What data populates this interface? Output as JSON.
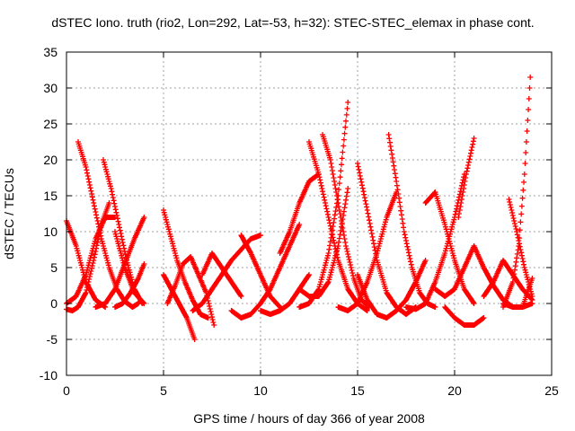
{
  "chart_data": {
    "type": "scatter",
    "title": "dSTEC Iono. truth (rio2, Lon=292, Lat=-53, h=32): STEC-STEC_elemax in phase cont.",
    "xlabel": "GPS time / hours of day 366 of year 2008",
    "ylabel": "dSTEC  / TECUs",
    "xlim": [
      0,
      25
    ],
    "ylim": [
      -10,
      35
    ],
    "x_ticks": [
      "0",
      "5",
      "10",
      "15",
      "20",
      "25"
    ],
    "y_ticks": [
      "-10",
      "-5",
      "0",
      "5",
      "10",
      "15",
      "20",
      "25",
      "30",
      "35"
    ],
    "grid": true,
    "marker": "plus",
    "color": "#ff0000",
    "arcs": [
      {
        "x": [
          0.0,
          0.5,
          1.0,
          1.5,
          2.0
        ],
        "y": [
          11.5,
          8.0,
          3.0,
          0.5,
          -0.5
        ]
      },
      {
        "x": [
          0.0,
          0.3,
          0.6,
          1.0,
          1.4,
          1.8,
          2.2
        ],
        "y": [
          -0.8,
          -1.0,
          -0.5,
          1.5,
          6.0,
          11.0,
          14.0
        ]
      },
      {
        "x": [
          0.0,
          0.5,
          1.0,
          1.5,
          2.0,
          2.5
        ],
        "y": [
          0.0,
          1.0,
          4.0,
          9.0,
          12.0,
          12.0
        ]
      },
      {
        "x": [
          0.6,
          1.0,
          1.4,
          1.8,
          2.2,
          2.6,
          3.0,
          3.4,
          3.7
        ],
        "y": [
          22.5,
          19.0,
          14.0,
          9.0,
          5.0,
          2.0,
          0.3,
          -0.5,
          0.0
        ]
      },
      {
        "x": [
          1.5,
          2.0,
          2.5,
          3.0,
          3.5,
          4.0
        ],
        "y": [
          -0.5,
          0.0,
          2.0,
          5.5,
          9.0,
          12.0
        ]
      },
      {
        "x": [
          1.9,
          2.3,
          2.7,
          3.1,
          3.5,
          3.9
        ],
        "y": [
          20.0,
          16.0,
          11.0,
          6.0,
          2.0,
          0.0
        ]
      },
      {
        "x": [
          2.5,
          3.0,
          3.5,
          4.0
        ],
        "y": [
          10.0,
          5.0,
          1.5,
          0.0
        ]
      },
      {
        "x": [
          2.5,
          2.9,
          3.3,
          3.7,
          4.0
        ],
        "y": [
          -0.5,
          0.0,
          1.5,
          3.5,
          5.5
        ]
      },
      {
        "x": [
          5.0,
          5.3,
          5.7,
          6.1,
          6.5,
          6.9,
          7.3
        ],
        "y": [
          13.0,
          10.0,
          6.0,
          3.0,
          0.5,
          -1.5,
          -2.0
        ]
      },
      {
        "x": [
          5.0,
          5.4,
          5.8,
          6.2,
          6.6
        ],
        "y": [
          4.0,
          2.0,
          0.0,
          -2.0,
          -5.0
        ]
      },
      {
        "x": [
          5.2,
          5.6,
          6.0,
          6.4,
          6.8,
          7.2,
          7.6
        ],
        "y": [
          0.0,
          2.5,
          5.5,
          6.5,
          4.0,
          1.5,
          -3.0
        ]
      },
      {
        "x": [
          6.5,
          7.0,
          7.5,
          8.0,
          8.5,
          9.0,
          9.5,
          10.0
        ],
        "y": [
          -1.0,
          0.0,
          2.0,
          4.0,
          6.0,
          7.5,
          9.0,
          9.5
        ]
      },
      {
        "x": [
          7.0,
          7.5,
          8.0,
          8.5,
          9.0
        ],
        "y": [
          4.0,
          7.0,
          5.0,
          3.0,
          1.0
        ]
      },
      {
        "x": [
          8.5,
          9.0,
          9.5,
          10.0,
          10.5,
          11.0,
          11.5,
          12.0
        ],
        "y": [
          -1.0,
          -2.0,
          -1.5,
          0.0,
          2.0,
          5.0,
          8.0,
          11.0
        ]
      },
      {
        "x": [
          9.0,
          9.5,
          10.0,
          10.5,
          11.0
        ],
        "y": [
          9.5,
          7.0,
          4.0,
          1.0,
          -0.5
        ]
      },
      {
        "x": [
          10.0,
          10.5,
          11.0,
          11.5,
          12.0,
          12.5
        ],
        "y": [
          -1.0,
          -1.5,
          -1.0,
          0.0,
          2.0,
          4.0
        ]
      },
      {
        "x": [
          11.0,
          11.5,
          12.0,
          12.5,
          13.0
        ],
        "y": [
          7.0,
          10.0,
          14.0,
          17.0,
          18.0
        ]
      },
      {
        "x": [
          12.5,
          13.0,
          13.5,
          14.0,
          14.5,
          15.0,
          15.5
        ],
        "y": [
          22.5,
          18.0,
          12.0,
          6.0,
          2.0,
          0.0,
          -1.0
        ]
      },
      {
        "x": [
          12.0,
          12.5,
          13.0,
          13.5,
          14.0,
          14.5
        ],
        "y": [
          -0.5,
          0.0,
          2.0,
          7.0,
          15.0,
          28.0
        ]
      },
      {
        "x": [
          13.2,
          13.6,
          14.0,
          14.4,
          14.8,
          15.2,
          15.6
        ],
        "y": [
          23.5,
          20.0,
          14.0,
          8.0,
          3.5,
          0.5,
          -0.5
        ]
      },
      {
        "x": [
          12.0,
          12.5,
          13.0,
          13.5,
          14.0,
          14.5
        ],
        "y": [
          2.0,
          1.0,
          1.0,
          3.0,
          8.0,
          16.0
        ]
      },
      {
        "x": [
          14.0,
          14.5,
          15.0,
          15.5,
          16.0,
          16.5,
          17.0
        ],
        "y": [
          -0.5,
          -1.0,
          0.0,
          3.0,
          7.0,
          12.0,
          15.5
        ]
      },
      {
        "x": [
          15.0,
          15.5,
          16.0,
          16.5,
          17.0,
          17.5,
          18.0
        ],
        "y": [
          19.5,
          13.0,
          6.0,
          1.5,
          -0.5,
          -1.5,
          -0.5
        ]
      },
      {
        "x": [
          15.0,
          15.5,
          16.0,
          16.5,
          17.0,
          17.5,
          18.0,
          18.5
        ],
        "y": [
          4.0,
          0.5,
          -1.5,
          -2.0,
          -1.0,
          0.5,
          3.0,
          6.0
        ]
      },
      {
        "x": [
          16.6,
          17.0,
          17.4,
          17.8,
          18.2,
          18.6,
          19.0
        ],
        "y": [
          23.5,
          17.0,
          10.0,
          5.0,
          1.5,
          0.0,
          -0.5
        ]
      },
      {
        "x": [
          17.5,
          18.0,
          18.5,
          19.0,
          19.5,
          20.0,
          20.5
        ],
        "y": [
          -0.5,
          -0.8,
          0.0,
          3.0,
          7.0,
          12.0,
          18.0
        ]
      },
      {
        "x": [
          18.5,
          19.0,
          19.5,
          20.0,
          20.5,
          21.0
        ],
        "y": [
          14.0,
          15.5,
          11.0,
          6.0,
          2.0,
          0.0
        ]
      },
      {
        "x": [
          19.0,
          19.5,
          20.0,
          20.5,
          21.0
        ],
        "y": [
          2.0,
          1.0,
          2.0,
          5.0,
          8.0
        ]
      },
      {
        "x": [
          19.5,
          20.0,
          20.5,
          21.0,
          21.5
        ],
        "y": [
          -0.5,
          -2.0,
          -3.0,
          -3.0,
          -2.0
        ]
      },
      {
        "x": [
          20.2,
          20.6,
          21.0
        ],
        "y": [
          12.0,
          18.0,
          23.0
        ]
      },
      {
        "x": [
          21.0,
          21.5,
          22.0,
          22.5,
          23.0,
          23.5,
          24.0
        ],
        "y": [
          8.0,
          5.0,
          2.5,
          0.5,
          -0.5,
          -0.5,
          0.0
        ]
      },
      {
        "x": [
          21.5,
          22.0,
          22.5,
          23.0,
          23.5,
          24.0
        ],
        "y": [
          1.0,
          3.0,
          6.0,
          4.0,
          2.0,
          0.5
        ]
      },
      {
        "x": [
          22.5,
          23.0,
          23.3,
          23.6,
          23.9
        ],
        "y": [
          -0.5,
          3.0,
          8.0,
          18.0,
          31.5
        ]
      },
      {
        "x": [
          22.8,
          23.2,
          23.6,
          24.0
        ],
        "y": [
          14.5,
          10.0,
          5.0,
          1.0
        ]
      },
      {
        "x": [
          22.5,
          23.0,
          23.5,
          24.0
        ],
        "y": [
          0.0,
          -0.5,
          -0.5,
          3.5
        ]
      }
    ]
  }
}
